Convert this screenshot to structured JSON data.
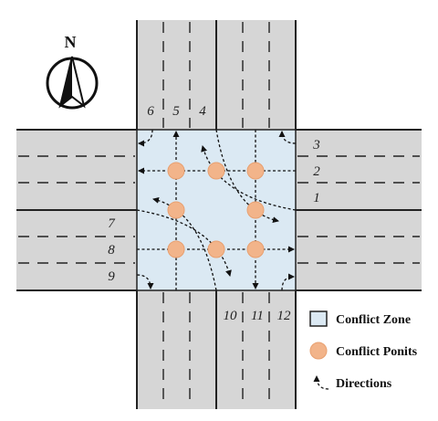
{
  "compass": {
    "label": "N",
    "icon": "north-arrow-icon"
  },
  "lanes": {
    "north": [
      "6",
      "5",
      "4"
    ],
    "east": [
      "3",
      "2",
      "1"
    ],
    "west": [
      "7",
      "8",
      "9"
    ],
    "south": [
      "10",
      "11",
      "12"
    ]
  },
  "legend": {
    "conflict_zone": "Conflict Zone",
    "conflict_points": "Conflict Ponits",
    "directions": "Directions"
  },
  "colors": {
    "road": "#d6d6d6",
    "zone": "#dbe9f3",
    "point": "#f2b48a",
    "line": "#222222"
  }
}
